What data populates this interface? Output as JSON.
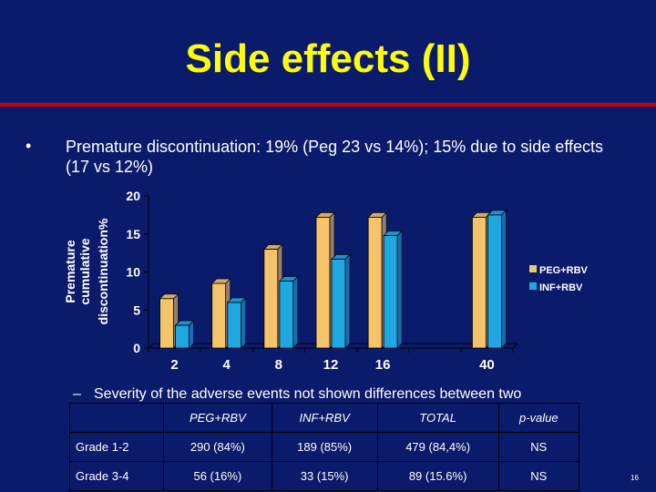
{
  "slide": {
    "title": "Side effects (II)",
    "bullet_marker": "•",
    "bullet_text": "Premature discontinuation: 19% (Peg 23 vs 14%); 15% due to side effects (17 vs 12%)",
    "sub_dash": "–",
    "sub_text": "Severity of the adverse events not shown differences between two",
    "page_number": "16"
  },
  "colors": {
    "background": "#0b1b6b",
    "title": "#ffff00",
    "rule": "#cc0000",
    "peg": "#f5c46a",
    "inf": "#1ea7e1"
  },
  "chart_data": {
    "type": "bar",
    "ylabel_lines": [
      "Premature",
      "cumulative",
      "discontinuation%"
    ],
    "categories": [
      "2",
      "4",
      "8",
      "12",
      "16",
      "",
      "40"
    ],
    "ylim": [
      0,
      20
    ],
    "yticks": [
      0,
      5,
      10,
      15,
      20
    ],
    "legend_position": "right",
    "series": [
      {
        "name": "PEG+RBV",
        "values": [
          6.5,
          8.5,
          13,
          17.2,
          17.2,
          null,
          17.2
        ]
      },
      {
        "name": "INF+RBV",
        "values": [
          3,
          6,
          8.8,
          11.7,
          14.8,
          null,
          17.5
        ]
      }
    ]
  },
  "table": {
    "headers": [
      "",
      "PEG+RBV",
      "INF+RBV",
      "TOTAL",
      "p-value"
    ],
    "rows": [
      [
        "Grade 1-2",
        "290 (84%)",
        "189 (85%)",
        "479 (84,4%)",
        "NS"
      ],
      [
        "Grade 3-4",
        "56 (16%)",
        "33 (15%)",
        "89 (15.6%)",
        "NS"
      ]
    ]
  }
}
